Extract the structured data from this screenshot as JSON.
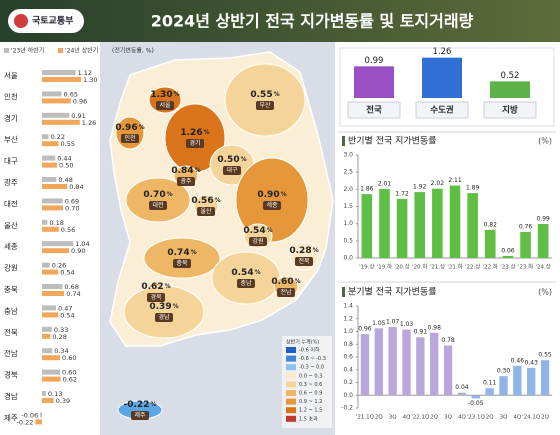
{
  "header": {
    "logo": "국토교통부",
    "title": "2024년 상반기 전국 지가변동률 및 토지거래량"
  },
  "chart_data": [
    {
      "type": "hbar",
      "subtitle": "(전기변동률, %)",
      "categories": [
        "서울",
        "인천",
        "경기",
        "부산",
        "대구",
        "광주",
        "대전",
        "울산",
        "세종",
        "강원",
        "충북",
        "충남",
        "전북",
        "전남",
        "경북",
        "경남",
        "제주"
      ],
      "series": [
        {
          "name": "'23년 하반기",
          "color": "#bdbdbd",
          "values": [
            1.12,
            0.65,
            0.91,
            0.22,
            0.44,
            0.48,
            0.69,
            0.18,
            1.04,
            0.26,
            0.68,
            0.47,
            0.33,
            0.34,
            0.6,
            0.13,
            -0.06
          ],
          "value_labels": [
            "1.12",
            "0.65",
            "0.91",
            "0.22",
            "0.44",
            "0.48",
            "0.69",
            "0.18",
            "1.04",
            "0.26",
            "0.68",
            "0.47",
            "0.33",
            "0.34",
            "0.60",
            "0.13",
            "-0.06"
          ]
        },
        {
          "name": "'24년 상반기",
          "color": "#f2a65a",
          "values": [
            1.3,
            0.96,
            1.26,
            0.55,
            0.5,
            0.84,
            0.7,
            0.56,
            0.9,
            0.54,
            0.74,
            0.54,
            0.28,
            0.6,
            0.62,
            0.39,
            -0.22
          ],
          "value_labels": [
            "1.30",
            "0.96",
            "1.26",
            "0.55",
            "0.50",
            "0.84",
            "0.70",
            "0.56",
            "0.90",
            "0.54",
            "0.74",
            "0.54",
            "0.28",
            "0.60",
            "0.62",
            "0.39",
            "-0.22"
          ]
        }
      ]
    },
    {
      "type": "summary",
      "categories": [
        "전국",
        "수도권",
        "지방"
      ],
      "values": [
        0.99,
        1.26,
        0.52
      ],
      "value_labels": [
        "0.99",
        "1.26",
        "0.52"
      ],
      "colors": [
        "#9b4fc4",
        "#2f6fd6",
        "#5db34a"
      ]
    },
    {
      "type": "bar",
      "title": "반기별 전국 지가변동률",
      "unit": "(%)",
      "categories": [
        "'19.상",
        "'19.하",
        "'20.상",
        "'20.하",
        "'21.상",
        "'21.하",
        "'22.상",
        "'22.하",
        "'23.상",
        "'23.하",
        "'24.상"
      ],
      "values": [
        1.86,
        2.01,
        1.72,
        1.92,
        2.02,
        2.11,
        1.89,
        0.82,
        0.06,
        0.76,
        0.99
      ],
      "value_labels": [
        "1.86",
        "2.01",
        "1.72",
        "1.92",
        "2.02",
        "2.11",
        "1.89",
        "0.82",
        "0.06",
        "0.76",
        "0.99"
      ],
      "color": "#5fbf45",
      "ylim": [
        0,
        3
      ],
      "yticks": [
        {
          "value": 0,
          "label": "0.0"
        },
        0.5,
        {
          "value": 1,
          "label": "1.0"
        },
        1.5,
        {
          "value": 2,
          "label": "2.0"
        },
        2.5,
        {
          "value": 3,
          "label": "3.0"
        }
      ],
      "grid": false
    },
    {
      "type": "bar",
      "title": "분기별 전국 지가변동률",
      "unit": "(%)",
      "categories": [
        "'21.1Q",
        "2Q",
        "3Q",
        "4Q",
        "'22.1Q",
        "2Q",
        "3Q",
        "4Q",
        "'23.1Q",
        "2Q",
        "3Q",
        "4Q",
        "'24.1Q",
        "2Q"
      ],
      "values": [
        0.96,
        1.05,
        1.07,
        1.03,
        0.91,
        0.98,
        0.78,
        0.04,
        -0.05,
        0.11,
        0.3,
        0.46,
        0.43,
        0.55
      ],
      "value_labels": [
        "0.96",
        "1.05",
        "1.07",
        "1.03",
        "0.91",
        "0.98",
        "0.78",
        "0.04",
        "-0.05",
        "0.11",
        "0.30",
        "0.46",
        "0.43",
        "0.55"
      ],
      "colors": [
        "#b9a6db",
        "#b9a6db",
        "#b9a6db",
        "#b9a6db",
        "#b9a6db",
        "#b9a6db",
        "#b9a6db",
        "#a9b4c8",
        "#8fb5e6",
        "#8fb5e6",
        "#8fb5e6",
        "#8fb5e6",
        "#8fb5e6",
        "#8fb5e6"
      ],
      "ylim": [
        -0.2,
        1.4
      ],
      "yticks": [
        -0.2,
        {
          "value": 0,
          "label": "0.0"
        },
        0.2,
        0.4,
        0.6,
        0.8,
        {
          "value": 1,
          "label": "1.0"
        },
        1.2,
        1.4
      ],
      "grid": false
    }
  ],
  "map": {
    "unit": "%",
    "colors": [
      "#d9741a",
      "#e6973a",
      "#d9741a",
      "#f5d49a",
      "#f5d49a",
      "#eeb766",
      "#eeb766",
      "#f5d49a",
      "#e6973a",
      "#f5d49a",
      "#eeb766",
      "#f5d49a",
      "#fbe9c8",
      "#eeb766",
      "#eeb766",
      "#f5d49a",
      "#5aa7e8"
    ],
    "legend": {
      "title": "상반기 누계(%)",
      "items": [
        {
          "label": "-0.6 이하",
          "color": "#1f5fbf"
        },
        {
          "label": "-0.6 ~ -0.3",
          "color": "#3f86d8"
        },
        {
          "label": "-0.3 ~ 0.0",
          "color": "#8cc0ef"
        },
        {
          "label": "0.0 ~ 0.3",
          "color": "#fbe9c8"
        },
        {
          "label": "0.3 ~ 0.6",
          "color": "#f5d49a"
        },
        {
          "label": "0.6 ~ 0.9",
          "color": "#eeb766"
        },
        {
          "label": "0.9 ~ 1.2",
          "color": "#e6973a"
        },
        {
          "label": "1.2 ~ 1.5",
          "color": "#d9741a"
        },
        {
          "label": "1.5 초과",
          "color": "#c0392b"
        }
      ]
    }
  }
}
